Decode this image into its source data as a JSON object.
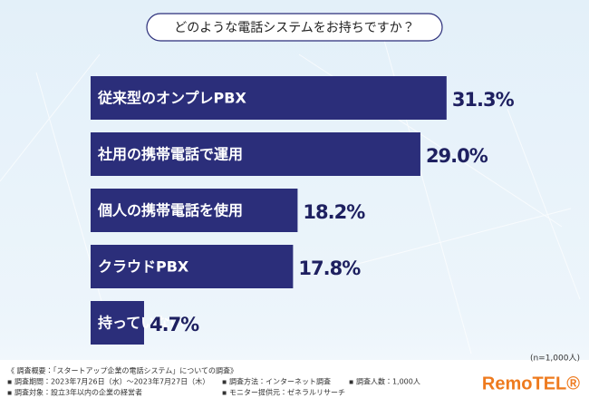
{
  "chart_data": {
    "type": "hbar",
    "title": "どのような電話システムをお持ちですか？",
    "categories": [
      "従来型のオンプレPBX",
      "社用の携帯電話で運用",
      "個人の携帯電話を使用",
      "クラウドPBX",
      "持っていない"
    ],
    "values": [
      31.3,
      29.0,
      18.2,
      17.8,
      4.7
    ],
    "value_labels": [
      "31.3%",
      "29.0%",
      "18.2%",
      "17.8%",
      "4.7%"
    ],
    "color": "#2b2e7a",
    "sample_note": "(n=1,000人)"
  },
  "footer": {
    "heading": "《 調査概要：「スタートアップ企業の電話システム」についての調査》",
    "items": [
      "▪ 調査期間：2023年7月26日（水）〜2023年7月27日（木）",
      "▪ 調査方法：インターネット調査",
      "▪ 調査人数：1,000人",
      "▪ 調査対象：設立3年以内の企業の経営者",
      "▪ モニター提供元：ゼネラルリサーチ"
    ],
    "logo": "RemoTEL®"
  }
}
